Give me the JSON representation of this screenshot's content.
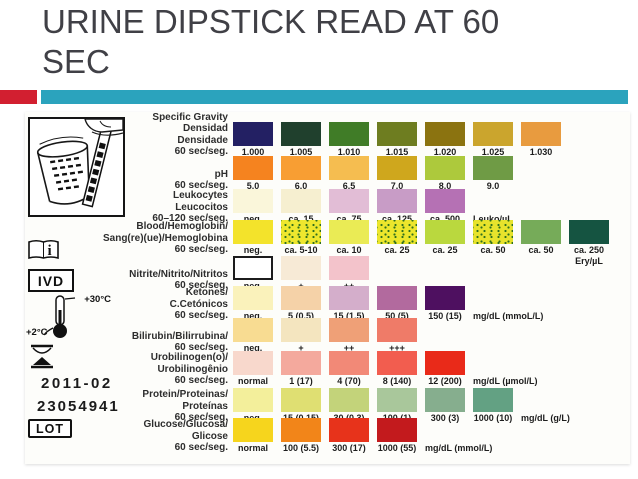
{
  "slide": {
    "title_lines": [
      "URINE DIPSTICK READ AT 60",
      "SEC"
    ],
    "accent_red": "#d21f30",
    "accent_teal": "#2ba3bd"
  },
  "card": {
    "ivd_label": "IVD",
    "lot_date": "2011-02",
    "lot_number": "23054941",
    "lot_label": "LOT",
    "thermometer_max": "+30°C",
    "thermometer_min": "+2°C",
    "rows": [
      {
        "name": "specific-gravity",
        "label_lines": [
          "Specific Gravity",
          "Densidad",
          "Densidade",
          "60 sec/seg."
        ],
        "patches": [
          {
            "label": "1.000",
            "color": "#232063"
          },
          {
            "label": "1.005",
            "color": "#20402d"
          },
          {
            "label": "1.010",
            "color": "#407c27"
          },
          {
            "label": "1.015",
            "color": "#6e7d20"
          },
          {
            "label": "1.020",
            "color": "#8b7310"
          },
          {
            "label": "1.025",
            "color": "#cba52d"
          },
          {
            "label": "1.030",
            "color": "#e89b3f"
          }
        ],
        "unit": ""
      },
      {
        "name": "ph",
        "label_lines": [
          "pH",
          "60 sec/seg."
        ],
        "patches": [
          {
            "label": "5.0",
            "color": "#f5831f"
          },
          {
            "label": "6.0",
            "color": "#f89e33"
          },
          {
            "label": "6.5",
            "color": "#f5bd50"
          },
          {
            "label": "7.0",
            "color": "#cfa71d"
          },
          {
            "label": "8.0",
            "color": "#adc93c"
          },
          {
            "label": "9.0",
            "color": "#6f9b45"
          }
        ],
        "unit": ""
      },
      {
        "name": "leukocytes",
        "label_lines": [
          "Leukocytes",
          "Leucocitos",
          "60–120 sec/seg."
        ],
        "patches": [
          {
            "label": "neg.",
            "color": "#faf6da"
          },
          {
            "label": "ca. 15",
            "color": "#f6efd0"
          },
          {
            "label": "ca. 75",
            "color": "#e2bdd6"
          },
          {
            "label": "ca. 125",
            "color": "#c89cc6"
          },
          {
            "label": "ca. 500",
            "color": "#b571b4"
          }
        ],
        "unit": "Leuko/µL"
      },
      {
        "name": "blood-hemoglobin",
        "label_lines": [
          "Blood/Hemoglobin/",
          "Sang(re)(ue)/Hemoglobina",
          "60 sec/seg."
        ],
        "patches": [
          {
            "label": "neg.",
            "color": "#f3e32b"
          },
          {
            "label": "ca. 5-10",
            "color": "#eee72e",
            "speckled": true
          },
          {
            "label": "ca. 10",
            "color": "#eaeb55"
          },
          {
            "label": "ca. 25",
            "color": "#ece62c",
            "speckled": true
          },
          {
            "label": "ca. 25",
            "color": "#bad83e"
          },
          {
            "label": "ca. 50",
            "color": "#e7e32c",
            "speckled": true
          },
          {
            "label": "ca. 50",
            "color": "#76ab59"
          },
          {
            "label": "ca. 250",
            "color": "#155441",
            "sub": "Ery/µL"
          }
        ],
        "unit": ""
      },
      {
        "name": "nitrite",
        "label_lines": [
          "Nitrite/Nitrito/Nitritos",
          "60 sec/seg."
        ],
        "patches": [
          {
            "label": "neg.",
            "color": "#ffffff",
            "outlined": true
          },
          {
            "label": "+",
            "color": "#f7ead6"
          },
          {
            "label": "++",
            "color": "#f3c3cb"
          }
        ],
        "unit": ""
      },
      {
        "name": "ketones",
        "label_lines": [
          "Ketones/",
          "C.Cetónicos",
          "60 sec/seg."
        ],
        "patches": [
          {
            "label": "neg.",
            "color": "#faf2bb"
          },
          {
            "label": "5 (0.5)",
            "color": "#f5d2a8"
          },
          {
            "label": "15 (1.5)",
            "color": "#d4aecb"
          },
          {
            "label": "50 (5)",
            "color": "#b26a9e"
          },
          {
            "label": "150 (15)",
            "color": "#4e1060"
          }
        ],
        "unit": "mg/dL (mmoL/L)"
      },
      {
        "name": "bilirubin",
        "label_lines": [
          "Bilirubin/Bilirrubina/",
          "60 sec/seg."
        ],
        "patches": [
          {
            "label": "neg.",
            "color": "#f8dc92"
          },
          {
            "label": "+",
            "color": "#f4e5bf"
          },
          {
            "label": "++",
            "color": "#efa077"
          },
          {
            "label": "+++",
            "color": "#ef7b68"
          }
        ],
        "unit": ""
      },
      {
        "name": "urobilinogen",
        "label_lines": [
          "Urobilinogen(o)/",
          "Urobilinogênio",
          "60 sec/seg."
        ],
        "patches": [
          {
            "label": "normal",
            "color": "#f8d8cc"
          },
          {
            "label": "1 (17)",
            "color": "#f4a99d"
          },
          {
            "label": "4 (70)",
            "color": "#f28977"
          },
          {
            "label": "8 (140)",
            "color": "#f25d4f"
          },
          {
            "label": "12 (200)",
            "color": "#e92a19"
          }
        ],
        "unit": "mg/dL (µmol/L)"
      },
      {
        "name": "protein",
        "label_lines": [
          "Protein/Proteinas/",
          "Proteínas",
          "60 sec/seg."
        ],
        "patches": [
          {
            "label": "neg.",
            "color": "#f3ef9b"
          },
          {
            "label": "15 (0.15)",
            "color": "#dfdf72"
          },
          {
            "label": "30 (0.3)",
            "color": "#c3d37a"
          },
          {
            "label": "100 (1)",
            "color": "#a9c79b"
          },
          {
            "label": "300 (3)",
            "color": "#86ae8e"
          },
          {
            "label": "1000 (10)",
            "color": "#63a183"
          }
        ],
        "unit": "mg/dL (g/L)"
      },
      {
        "name": "glucose",
        "label_lines": [
          "Glucose/Glucosa/",
          "Glicose",
          "60 sec/seg."
        ],
        "patches": [
          {
            "label": "normal",
            "color": "#f6d51d"
          },
          {
            "label": "100 (5.5)",
            "color": "#f28519"
          },
          {
            "label": "300 (17)",
            "color": "#e7331b"
          },
          {
            "label": "1000 (55)",
            "color": "#c31a1d"
          }
        ],
        "unit": "mg/dL (mmol/L)"
      }
    ]
  }
}
